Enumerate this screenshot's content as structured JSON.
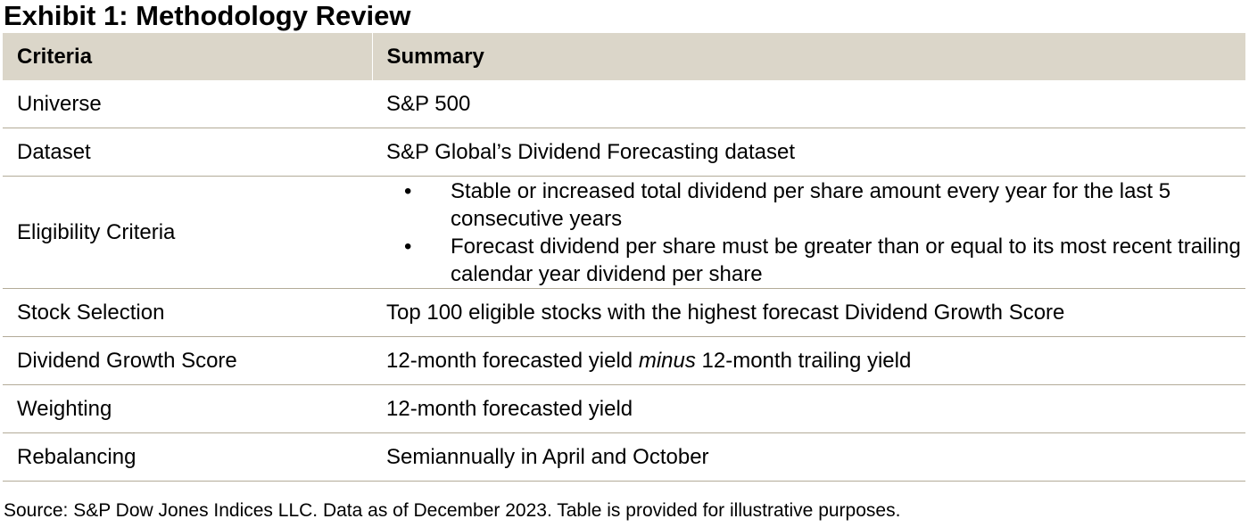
{
  "title": "Exhibit 1: Methodology Review",
  "table": {
    "headers": [
      "Criteria",
      "Summary"
    ],
    "rows": [
      {
        "criteria": "Universe",
        "summary": "S&P 500"
      },
      {
        "criteria": "Dataset",
        "summary": "S&P Global’s Dividend Forecasting dataset"
      },
      {
        "criteria": "Eligibility Criteria",
        "bullets": [
          "Stable or increased total dividend per share amount every year for the last 5 consecutive years",
          "Forecast dividend per share must be greater than or equal to its most recent trailing calendar year dividend per share"
        ]
      },
      {
        "criteria": "Stock Selection",
        "summary": "Top 100 eligible stocks with the highest forecast Dividend Growth Score"
      },
      {
        "criteria": "Dividend Growth Score",
        "summary_parts": {
          "before": "12-month forecasted yield ",
          "emphasis": "minus",
          "after": " 12-month trailing yield"
        }
      },
      {
        "criteria": "Weighting",
        "summary": "12-month forecasted yield"
      },
      {
        "criteria": "Rebalancing",
        "summary": "Semiannually in April and October"
      }
    ]
  },
  "bullet_symbol": "•",
  "source": "Source: S&P Dow Jones Indices LLC. Data as of December 2023. Table is provided for illustrative purposes.",
  "colors": {
    "header_background": "#dbd6c9",
    "row_divider": "#b3ab98"
  }
}
